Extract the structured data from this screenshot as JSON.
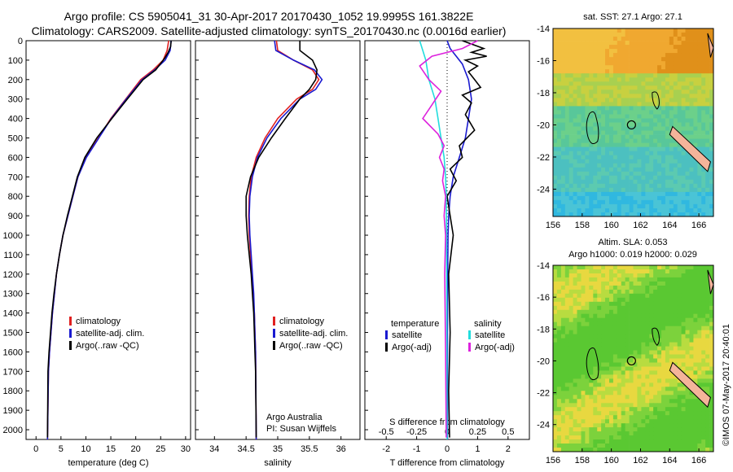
{
  "header": {
    "line1": "Argo profile: CS 5905041_31 30-Apr-2017 20170430_1052 19.9995S 161.3822E",
    "line2": "Climatology: CARS2009. Satellite-adjusted climatology: synTS_20170430.nc (0.0016d earlier)"
  },
  "colors": {
    "climatology": "#e02020",
    "satellite": "#1a1ad0",
    "argo": "#000000",
    "sal_satellite": "#22dddd",
    "sal_argo": "#dd22dd"
  },
  "chart_data": [
    {
      "type": "line",
      "xlabel": "temperature (deg C)",
      "ylabel": "",
      "xlim": [
        -2,
        31
      ],
      "ylim": [
        2050,
        0
      ],
      "xticks": [
        0,
        5,
        10,
        15,
        20,
        25,
        30
      ],
      "yticks": [
        0,
        100,
        200,
        300,
        400,
        500,
        600,
        700,
        800,
        900,
        1000,
        1100,
        1200,
        1300,
        1400,
        1500,
        1600,
        1700,
        1800,
        1900,
        2000
      ],
      "legend": {
        "position": "lower-center",
        "entries": [
          "climatology",
          "satellite-adj. clim.",
          "Argo(..raw -QC)"
        ]
      },
      "series": [
        {
          "name": "climatology",
          "color": "#e02020",
          "x": [
            26.6,
            26.3,
            25.5,
            23.5,
            21.0,
            18.0,
            15.0,
            12.5,
            10.0,
            8.4,
            7.4,
            6.4,
            5.4,
            4.7,
            4.1,
            3.7,
            3.3,
            3.0,
            2.7,
            2.5,
            2.3
          ],
          "y": [
            0,
            50,
            100,
            150,
            200,
            300,
            400,
            500,
            600,
            700,
            800,
            900,
            1000,
            1100,
            1200,
            1300,
            1400,
            1500,
            1600,
            1700,
            2050
          ]
        },
        {
          "name": "satellite-adj. clim.",
          "color": "#1a1ad0",
          "x": [
            27.1,
            26.9,
            25.9,
            23.8,
            21.3,
            18.1,
            15.1,
            12.6,
            10.1,
            8.4,
            7.4,
            6.4,
            5.4,
            4.7,
            4.1,
            3.7,
            3.3,
            3.0,
            2.7,
            2.5,
            2.3
          ],
          "y": [
            0,
            50,
            100,
            150,
            200,
            300,
            400,
            500,
            600,
            700,
            800,
            900,
            1000,
            1100,
            1200,
            1300,
            1400,
            1500,
            1600,
            1700,
            2050
          ]
        },
        {
          "name": "Argo(..raw -QC)",
          "color": "#000000",
          "x": [
            27.1,
            27.0,
            26.5,
            25.8,
            24.0,
            21.5,
            18.3,
            15.2,
            12.2,
            9.8,
            8.3,
            7.3,
            6.3,
            5.4,
            4.7,
            4.1,
            3.6,
            3.2,
            2.9,
            2.6,
            2.4,
            2.3
          ],
          "y": [
            0,
            30,
            60,
            90,
            150,
            200,
            300,
            400,
            500,
            600,
            700,
            800,
            900,
            1000,
            1100,
            1200,
            1300,
            1400,
            1500,
            1600,
            1700,
            2040
          ]
        }
      ]
    },
    {
      "type": "line",
      "xlabel": "salinity",
      "ylabel": "",
      "xlim": [
        33.7,
        36.3
      ],
      "ylim": [
        2050,
        0
      ],
      "xticks": [
        34,
        34.5,
        35,
        35.5,
        36
      ],
      "legend": {
        "position": "lower-center",
        "entries": [
          "climatology",
          "satellite-adj. clim.",
          "Argo(..raw -QC)"
        ]
      },
      "annotation": [
        "Argo Australia",
        "PI: Susan Wijffels"
      ],
      "series": [
        {
          "name": "climatology",
          "color": "#e02020",
          "x": [
            34.98,
            35.0,
            35.25,
            35.55,
            35.65,
            35.55,
            35.3,
            35.0,
            34.8,
            34.66,
            34.58,
            34.55,
            34.54,
            34.55,
            34.57,
            34.59,
            34.61,
            34.63,
            34.64,
            34.65,
            34.66
          ],
          "y": [
            0,
            50,
            100,
            150,
            200,
            250,
            300,
            400,
            500,
            600,
            700,
            800,
            900,
            1000,
            1100,
            1200,
            1300,
            1400,
            1500,
            1600,
            2050
          ]
        },
        {
          "name": "satellite-adj. clim.",
          "color": "#1a1ad0",
          "x": [
            34.95,
            34.97,
            35.25,
            35.58,
            35.7,
            35.6,
            35.35,
            35.05,
            34.83,
            34.68,
            34.6,
            34.56,
            34.55,
            34.56,
            34.58,
            34.6,
            34.62,
            34.63,
            34.64,
            34.65,
            34.66
          ],
          "y": [
            0,
            50,
            100,
            150,
            200,
            250,
            300,
            400,
            500,
            600,
            700,
            800,
            900,
            1000,
            1100,
            1200,
            1300,
            1400,
            1500,
            1600,
            2050
          ]
        },
        {
          "name": "Argo(..raw -QC)",
          "color": "#000000",
          "x": [
            35.35,
            35.35,
            35.55,
            35.62,
            35.6,
            35.5,
            35.35,
            35.12,
            34.9,
            34.7,
            34.57,
            34.5,
            34.5,
            34.52,
            34.55,
            34.58,
            34.6,
            34.62,
            34.63,
            34.64,
            34.65,
            34.66
          ],
          "y": [
            0,
            50,
            100,
            150,
            200,
            250,
            300,
            400,
            500,
            600,
            700,
            800,
            900,
            1000,
            1100,
            1200,
            1300,
            1400,
            1500,
            1600,
            1700,
            2040
          ]
        }
      ]
    },
    {
      "type": "line",
      "xlabel": "T difference from climatology",
      "xlabel2": "S difference from climatology",
      "xlim": [
        -2.7,
        2.7
      ],
      "ylim": [
        2050,
        0
      ],
      "xticks": [
        -2,
        -1,
        0,
        1,
        2
      ],
      "xticks_top": [
        -0.5,
        -0.25,
        0,
        0.25,
        0.5
      ],
      "legend": {
        "position": "lower-center",
        "temperature_header": "temperature",
        "salinity_header": "salinity",
        "entries": [
          "satellite",
          "Argo(-adj)",
          "satellite",
          "Argo(-adj)"
        ]
      },
      "series": [
        {
          "name": "satellite",
          "group": "temperature",
          "color": "#1a1ad0",
          "x": [
            0.0,
            0.1,
            0.3,
            0.5,
            0.7,
            0.8,
            0.7,
            0.6,
            0.4,
            0.2,
            0.1,
            0.05,
            0.03,
            0.02,
            0.01,
            0.01
          ],
          "y": [
            0,
            40,
            80,
            120,
            200,
            300,
            400,
            500,
            600,
            700,
            800,
            900,
            1000,
            1200,
            1500,
            2050
          ]
        },
        {
          "name": "Argo(-adj)",
          "group": "temperature",
          "color": "#000000",
          "x": [
            0.5,
            1.2,
            0.8,
            1.3,
            0.6,
            1.0,
            0.7,
            0.9,
            1.1,
            0.5,
            0.8,
            0.6,
            0.9,
            0.4,
            0.5,
            0.1,
            0.3,
            0.0,
            0.1,
            0.2,
            0.05,
            0.1,
            0.05,
            0.08
          ],
          "y": [
            0,
            40,
            60,
            80,
            100,
            130,
            160,
            200,
            240,
            280,
            320,
            380,
            460,
            540,
            600,
            660,
            720,
            800,
            900,
            1000,
            1200,
            1500,
            1800,
            2040
          ]
        },
        {
          "name": "satellite",
          "group": "salinity",
          "color": "#22dddd",
          "x": [
            -0.9,
            -0.8,
            -0.7,
            -0.6,
            -0.4,
            -0.3,
            -0.2,
            -0.1,
            -0.05,
            -0.03,
            -0.02,
            -0.01,
            0.0
          ],
          "y": [
            0,
            50,
            100,
            200,
            300,
            400,
            500,
            600,
            700,
            800,
            1000,
            1500,
            2050
          ]
        },
        {
          "name": "Argo(-adj)",
          "group": "salinity",
          "color": "#dd22dd",
          "x": [
            1.0,
            0.5,
            -0.5,
            -0.9,
            -0.6,
            -0.2,
            -0.5,
            -0.8,
            -0.3,
            -0.1,
            -0.25,
            -0.1,
            -0.15,
            -0.05,
            -0.1,
            -0.05,
            -0.08,
            -0.05,
            -0.03
          ],
          "y": [
            0,
            40,
            80,
            130,
            200,
            260,
            330,
            400,
            480,
            540,
            600,
            660,
            720,
            800,
            900,
            1000,
            1200,
            1600,
            2040
          ]
        }
      ]
    }
  ],
  "maps": {
    "top": {
      "title": "sat. SST: 27.1  Argo: 27.1",
      "xticks": [
        156,
        158,
        160,
        162,
        164,
        166
      ],
      "yticks": [
        -14,
        -16,
        -18,
        -20,
        -22,
        -24
      ]
    },
    "bottom": {
      "title1": "Altim. SLA: 0.053",
      "title2": "Argo h1000: 0.019 h2000: 0.029",
      "xticks": [
        156,
        158,
        160,
        162,
        164,
        166
      ],
      "yticks": [
        -14,
        -16,
        -18,
        -20,
        -22,
        -24
      ]
    }
  },
  "credit": "©IMOS 07-May-2017 20:40:01"
}
